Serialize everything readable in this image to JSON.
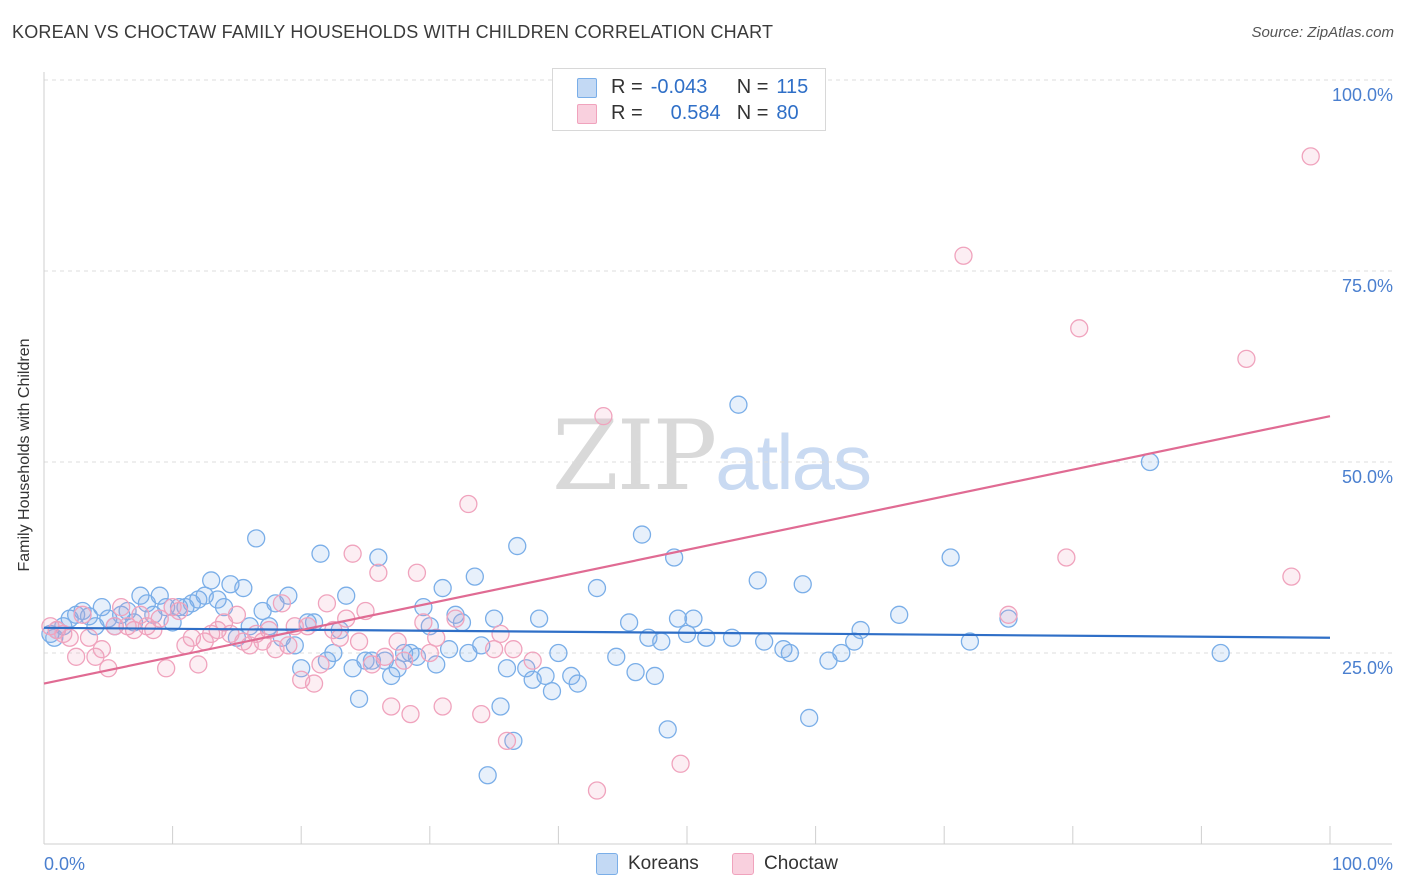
{
  "title": "KOREAN VS CHOCTAW FAMILY HOUSEHOLDS WITH CHILDREN CORRELATION CHART",
  "source": "Source: ZipAtlas.com",
  "watermark": {
    "zip": "ZIP",
    "atlas": "atlas"
  },
  "legend": {
    "korean": {
      "r_label": "R =",
      "r_value": "-0.043",
      "n_label": "N =",
      "n_value": "115",
      "color": "#7aaee8"
    },
    "choctaw": {
      "r_label": "R =",
      "r_value": "0.584",
      "n_label": "N =",
      "n_value": "80",
      "color": "#f0a3bd"
    }
  },
  "bottom_legend": {
    "korean": "Koreans",
    "choctaw": "Choctaw"
  },
  "chart_data": {
    "type": "scatter",
    "ylabel": "Family Households with Children",
    "x_tick_labels": {
      "left": "0.0%",
      "right": "100.0%"
    },
    "y_tick_labels": [
      "100.0%",
      "75.0%",
      "50.0%",
      "25.0%"
    ],
    "y_ticks": [
      100,
      75,
      50,
      25
    ],
    "xlim": [
      0,
      100
    ],
    "ylim": [
      0,
      102
    ],
    "grid": "horizontal dashed",
    "colors": {
      "korean": "#7aaee8",
      "korean_line": "#2f6fc7",
      "choctaw": "#f0a3bd",
      "choctaw_line": "#e06b93"
    },
    "series": [
      {
        "name": "Koreans",
        "trend": {
          "x": [
            0,
            100
          ],
          "y": [
            28.3,
            27.0
          ]
        },
        "points": [
          [
            0.5,
            27.5
          ],
          [
            0.8,
            27.0
          ],
          [
            1.0,
            28.0
          ],
          [
            1.5,
            28.5
          ],
          [
            2.0,
            29.5
          ],
          [
            2.5,
            30.0
          ],
          [
            3.0,
            30.5
          ],
          [
            3.5,
            29.8
          ],
          [
            4.0,
            28.5
          ],
          [
            4.5,
            31.0
          ],
          [
            5.0,
            29.5
          ],
          [
            5.5,
            28.5
          ],
          [
            6.0,
            30.0
          ],
          [
            6.5,
            30.5
          ],
          [
            7.0,
            29.0
          ],
          [
            7.5,
            32.5
          ],
          [
            8.0,
            31.5
          ],
          [
            8.5,
            30.0
          ],
          [
            9.0,
            32.5
          ],
          [
            9.5,
            31.0
          ],
          [
            10.0,
            29.0
          ],
          [
            10.5,
            31.0
          ],
          [
            11.0,
            31.0
          ],
          [
            11.5,
            31.5
          ],
          [
            12.0,
            32.0
          ],
          [
            12.5,
            32.5
          ],
          [
            13.0,
            34.5
          ],
          [
            13.5,
            32.0
          ],
          [
            14.0,
            31.0
          ],
          [
            14.5,
            34.0
          ],
          [
            15.0,
            27.0
          ],
          [
            15.5,
            33.5
          ],
          [
            16.0,
            28.5
          ],
          [
            16.5,
            40.0
          ],
          [
            17.0,
            30.5
          ],
          [
            17.5,
            28.5
          ],
          [
            18.0,
            31.5
          ],
          [
            18.5,
            27.0
          ],
          [
            19.0,
            32.5
          ],
          [
            19.5,
            26.0
          ],
          [
            20.0,
            23.0
          ],
          [
            20.5,
            29.0
          ],
          [
            21.0,
            29.0
          ],
          [
            21.5,
            38.0
          ],
          [
            22.0,
            24.0
          ],
          [
            22.5,
            25.0
          ],
          [
            23.0,
            28.0
          ],
          [
            23.5,
            32.5
          ],
          [
            24.0,
            23.0
          ],
          [
            24.5,
            19.0
          ],
          [
            25.0,
            24.0
          ],
          [
            25.5,
            24.0
          ],
          [
            26.0,
            37.5
          ],
          [
            26.5,
            24.0
          ],
          [
            27.0,
            22.0
          ],
          [
            27.5,
            23.0
          ],
          [
            28.0,
            25.0
          ],
          [
            28.5,
            25.0
          ],
          [
            29.0,
            24.5
          ],
          [
            29.5,
            31.0
          ],
          [
            30.0,
            28.5
          ],
          [
            30.5,
            23.5
          ],
          [
            31.0,
            33.5
          ],
          [
            31.5,
            25.5
          ],
          [
            32.0,
            30.0
          ],
          [
            32.5,
            29.0
          ],
          [
            33.0,
            25.0
          ],
          [
            33.5,
            35.0
          ],
          [
            34.0,
            26.0
          ],
          [
            34.5,
            9.0
          ],
          [
            35.0,
            29.5
          ],
          [
            35.5,
            18.0
          ],
          [
            36.0,
            23.0
          ],
          [
            36.5,
            13.5
          ],
          [
            36.8,
            39.0
          ],
          [
            37.5,
            23.0
          ],
          [
            38.0,
            21.5
          ],
          [
            38.5,
            29.5
          ],
          [
            39.0,
            22.0
          ],
          [
            39.5,
            20.0
          ],
          [
            40.0,
            25.0
          ],
          [
            41.0,
            22.0
          ],
          [
            41.5,
            21.0
          ],
          [
            43.0,
            33.5
          ],
          [
            44.5,
            24.5
          ],
          [
            45.5,
            29.0
          ],
          [
            46.0,
            22.5
          ],
          [
            46.5,
            40.5
          ],
          [
            47.0,
            27.0
          ],
          [
            47.5,
            22.0
          ],
          [
            48.0,
            26.5
          ],
          [
            48.5,
            15.0
          ],
          [
            49.0,
            37.5
          ],
          [
            49.3,
            29.5
          ],
          [
            50.0,
            27.5
          ],
          [
            50.5,
            29.5
          ],
          [
            51.5,
            27.0
          ],
          [
            54.0,
            57.5
          ],
          [
            53.5,
            27.0
          ],
          [
            55.5,
            34.5
          ],
          [
            56.0,
            26.5
          ],
          [
            57.5,
            25.5
          ],
          [
            58.0,
            25.0
          ],
          [
            59.0,
            34.0
          ],
          [
            59.5,
            16.5
          ],
          [
            61.0,
            24.0
          ],
          [
            62.0,
            25.0
          ],
          [
            63.0,
            26.5
          ],
          [
            63.5,
            28.0
          ],
          [
            66.5,
            30.0
          ],
          [
            70.5,
            37.5
          ],
          [
            72.0,
            26.5
          ],
          [
            75.0,
            29.5
          ],
          [
            86.0,
            50.0
          ],
          [
            91.5,
            25.0
          ]
        ]
      },
      {
        "name": "Choctaw",
        "trend": {
          "x": [
            0,
            100
          ],
          "y": [
            21.0,
            56.0
          ]
        },
        "points": [
          [
            0.5,
            28.5
          ],
          [
            1.0,
            28.0
          ],
          [
            1.5,
            27.5
          ],
          [
            2.0,
            27.0
          ],
          [
            2.5,
            24.5
          ],
          [
            3.0,
            30.0
          ],
          [
            3.5,
            27.0
          ],
          [
            4.0,
            24.5
          ],
          [
            4.5,
            25.5
          ],
          [
            5.0,
            23.0
          ],
          [
            5.5,
            28.5
          ],
          [
            6.0,
            31.0
          ],
          [
            6.5,
            28.5
          ],
          [
            7.0,
            28.0
          ],
          [
            7.5,
            30.0
          ],
          [
            8.0,
            28.5
          ],
          [
            8.5,
            28.0
          ],
          [
            9.0,
            29.5
          ],
          [
            9.5,
            23.0
          ],
          [
            10.0,
            31.0
          ],
          [
            10.5,
            30.5
          ],
          [
            11.0,
            26.0
          ],
          [
            11.5,
            27.0
          ],
          [
            12.0,
            23.5
          ],
          [
            12.5,
            26.5
          ],
          [
            13.0,
            27.5
          ],
          [
            13.5,
            28.0
          ],
          [
            14.0,
            29.0
          ],
          [
            14.5,
            27.5
          ],
          [
            15.0,
            30.0
          ],
          [
            15.5,
            26.5
          ],
          [
            16.0,
            26.0
          ],
          [
            16.5,
            27.5
          ],
          [
            17.0,
            26.5
          ],
          [
            17.5,
            28.0
          ],
          [
            18.0,
            25.5
          ],
          [
            18.5,
            31.5
          ],
          [
            19.0,
            26.0
          ],
          [
            19.5,
            28.5
          ],
          [
            20.0,
            21.5
          ],
          [
            20.5,
            28.5
          ],
          [
            21.0,
            21.0
          ],
          [
            21.5,
            23.5
          ],
          [
            22.0,
            31.5
          ],
          [
            22.5,
            28.0
          ],
          [
            23.0,
            27.0
          ],
          [
            23.5,
            29.5
          ],
          [
            24.0,
            38.0
          ],
          [
            24.5,
            26.5
          ],
          [
            25.0,
            30.5
          ],
          [
            25.5,
            23.5
          ],
          [
            26.0,
            35.5
          ],
          [
            26.5,
            24.5
          ],
          [
            27.0,
            18.0
          ],
          [
            27.5,
            26.5
          ],
          [
            28.0,
            24.0
          ],
          [
            28.5,
            17.0
          ],
          [
            29.0,
            35.5
          ],
          [
            29.5,
            29.0
          ],
          [
            30.0,
            25.0
          ],
          [
            30.5,
            27.0
          ],
          [
            31.0,
            18.0
          ],
          [
            32.0,
            29.5
          ],
          [
            33.0,
            44.5
          ],
          [
            34.0,
            17.0
          ],
          [
            35.0,
            25.5
          ],
          [
            35.5,
            27.5
          ],
          [
            36.0,
            13.5
          ],
          [
            36.5,
            25.5
          ],
          [
            38.0,
            24.0
          ],
          [
            43.0,
            7.0
          ],
          [
            43.5,
            56.0
          ],
          [
            49.5,
            10.5
          ],
          [
            71.5,
            77.0
          ],
          [
            75.0,
            30.0
          ],
          [
            79.5,
            37.5
          ],
          [
            80.5,
            67.5
          ],
          [
            93.5,
            63.5
          ],
          [
            98.5,
            90.0
          ],
          [
            97.0,
            35.0
          ]
        ]
      }
    ]
  }
}
